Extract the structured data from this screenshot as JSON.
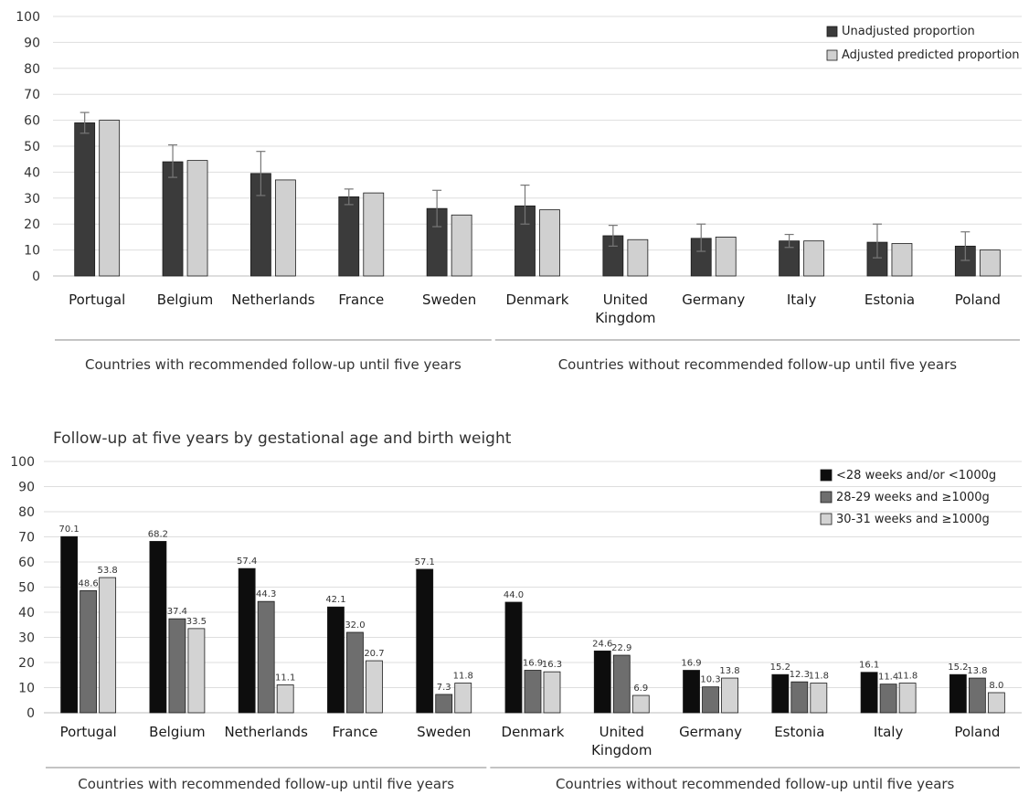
{
  "chart_data": [
    {
      "type": "bar",
      "title": "",
      "ylim": [
        0,
        100
      ],
      "yticks": [
        0,
        10,
        20,
        30,
        40,
        50,
        60,
        70,
        80,
        90,
        100
      ],
      "grid": true,
      "legend_position": "top-right",
      "categories": [
        "Portugal",
        "Belgium",
        "Netherlands",
        "France",
        "Sweden",
        "Denmark",
        "United Kingdom",
        "Germany",
        "Italy",
        "Estonia",
        "Poland"
      ],
      "category_label_lines": [
        [
          "Portugal"
        ],
        [
          "Belgium"
        ],
        [
          "Netherlands"
        ],
        [
          "France"
        ],
        [
          "Sweden"
        ],
        [
          "Denmark"
        ],
        [
          "United",
          "Kingdom"
        ],
        [
          "Germany"
        ],
        [
          "Italy"
        ],
        [
          "Estonia"
        ],
        [
          "Poland"
        ]
      ],
      "series": [
        {
          "name": "Unadjusted proportion",
          "color": "#3b3b3b",
          "values": [
            59,
            44,
            39.5,
            30.5,
            26,
            27,
            15.5,
            14.5,
            13.5,
            13,
            11.5
          ],
          "error_low": [
            55,
            38,
            31,
            27.5,
            19,
            20,
            11.5,
            9.5,
            11,
            7,
            6
          ],
          "error_high": [
            63,
            50.5,
            48,
            33.5,
            33,
            35,
            19.5,
            20,
            16,
            20,
            17
          ]
        },
        {
          "name": "Adjusted predicted proportion",
          "color": "#d0d0d0",
          "values": [
            60,
            44.5,
            37,
            32,
            23.5,
            25.5,
            14,
            15,
            13.5,
            12.5,
            10
          ]
        }
      ],
      "groups": [
        {
          "label": "Countries with recommended follow-up until five years",
          "from": 0,
          "to": 4
        },
        {
          "label": "Countries without recommended follow-up until five years",
          "from": 5,
          "to": 10
        }
      ]
    },
    {
      "type": "bar",
      "title": "Follow-up at five years by gestational age and birth weight",
      "ylim": [
        0,
        100
      ],
      "yticks": [
        0,
        10,
        20,
        30,
        40,
        50,
        60,
        70,
        80,
        90,
        100
      ],
      "grid": true,
      "legend_position": "top-right",
      "categories": [
        "Portugal",
        "Belgium",
        "Netherlands",
        "France",
        "Sweden",
        "Denmark",
        "United Kingdom",
        "Germany",
        "Estonia",
        "Italy",
        "Poland"
      ],
      "category_label_lines": [
        [
          "Portugal"
        ],
        [
          "Belgium"
        ],
        [
          "Netherlands"
        ],
        [
          "France"
        ],
        [
          "Sweden"
        ],
        [
          "Denmark"
        ],
        [
          "United",
          "Kingdom"
        ],
        [
          "Germany"
        ],
        [
          "Estonia"
        ],
        [
          "Italy"
        ],
        [
          "Poland"
        ]
      ],
      "series": [
        {
          "name": "<28 weeks and/or <1000g",
          "color": "#0d0d0d",
          "values": [
            70.1,
            68.2,
            57.4,
            42.1,
            57.1,
            44.0,
            24.6,
            16.9,
            15.2,
            16.1,
            15.2
          ],
          "labels": [
            "70.1",
            "68.2",
            "57.4",
            "42.1",
            "57.1",
            "44.0",
            "24.6",
            "16.9",
            "15.2",
            "16.1",
            "15.2"
          ]
        },
        {
          "name": "28-29 weeks and ≥1000g",
          "color": "#6e6e6e",
          "values": [
            48.6,
            37.4,
            44.3,
            32.0,
            7.3,
            16.9,
            22.9,
            10.3,
            12.3,
            11.4,
            13.8
          ],
          "labels": [
            "48.6",
            "37.4",
            "44.3",
            "32.0",
            "7.3",
            "16.9",
            "22.9",
            "10.3",
            "12.3",
            "11.4",
            "13.8"
          ]
        },
        {
          "name": "30-31 weeks and ≥1000g",
          "color": "#d3d3d3",
          "values": [
            53.8,
            33.5,
            11.1,
            20.7,
            11.8,
            16.3,
            6.9,
            13.8,
            11.8,
            11.8,
            8.0
          ],
          "labels": [
            "53.8",
            "33.5",
            "11.1",
            "20.7",
            "11.8",
            "16.3",
            "6.9",
            "13.8",
            "11.8",
            "11.8",
            "8.0"
          ]
        }
      ],
      "groups": [
        {
          "label": "Countries with recommended follow-up until five years",
          "from": 0,
          "to": 4
        },
        {
          "label": "Countries without recommended follow-up until five years",
          "from": 5,
          "to": 10
        }
      ]
    }
  ]
}
